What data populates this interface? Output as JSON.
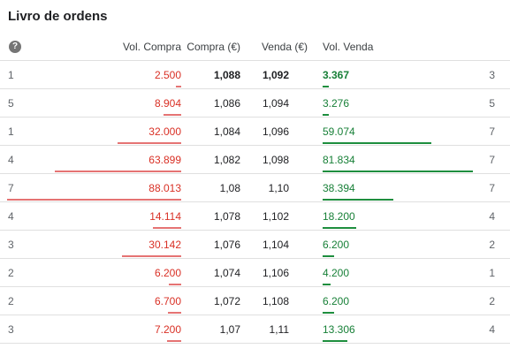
{
  "title": "Livro de ordens",
  "headers": {
    "help_icon": "?",
    "vol_compra": "Vol. Compra",
    "compra": "Compra (€)",
    "venda": "Venda (€)",
    "vol_venda": "Vol. Venda"
  },
  "rows": [
    {
      "left": "1",
      "vol_compra": "2.500",
      "compra": "1,088",
      "venda": "1,092",
      "vol_venda": "3.367",
      "right": "3",
      "buy_fraction": 0.028,
      "sell_fraction": 0.039
    },
    {
      "left": "5",
      "vol_compra": "8.904",
      "compra": "1,086",
      "venda": "1,094",
      "vol_venda": "3.276",
      "right": "5",
      "buy_fraction": 0.101,
      "sell_fraction": 0.037
    },
    {
      "left": "1",
      "vol_compra": "32.000",
      "compra": "1,084",
      "venda": "1,096",
      "vol_venda": "59.074",
      "right": "7",
      "buy_fraction": 0.364,
      "sell_fraction": 0.671
    },
    {
      "left": "4",
      "vol_compra": "63.899",
      "compra": "1,082",
      "venda": "1,098",
      "vol_venda": "81.834",
      "right": "7",
      "buy_fraction": 0.726,
      "sell_fraction": 0.93
    },
    {
      "left": "7",
      "vol_compra": "88.013",
      "compra": "1,08",
      "venda": "1,10",
      "vol_venda": "38.394",
      "right": "7",
      "buy_fraction": 1.0,
      "sell_fraction": 0.436
    },
    {
      "left": "4",
      "vol_compra": "14.114",
      "compra": "1,078",
      "venda": "1,102",
      "vol_venda": "18.200",
      "right": "4",
      "buy_fraction": 0.16,
      "sell_fraction": 0.207
    },
    {
      "left": "3",
      "vol_compra": "30.142",
      "compra": "1,076",
      "venda": "1,104",
      "vol_venda": "6.200",
      "right": "2",
      "buy_fraction": 0.342,
      "sell_fraction": 0.07
    },
    {
      "left": "2",
      "vol_compra": "6.200",
      "compra": "1,074",
      "venda": "1,106",
      "vol_venda": "4.200",
      "right": "1",
      "buy_fraction": 0.07,
      "sell_fraction": 0.048
    },
    {
      "left": "2",
      "vol_compra": "6.700",
      "compra": "1,072",
      "venda": "1,108",
      "vol_venda": "6.200",
      "right": "2",
      "buy_fraction": 0.076,
      "sell_fraction": 0.07
    },
    {
      "left": "3",
      "vol_compra": "7.200",
      "compra": "1,07",
      "venda": "1,11",
      "vol_venda": "13.306",
      "right": "4",
      "buy_fraction": 0.082,
      "sell_fraction": 0.151
    }
  ],
  "colors": {
    "buy": "#d93025",
    "buy_bar": "#e57373",
    "sell": "#188038",
    "sell_bar": "#1e8e3e"
  }
}
